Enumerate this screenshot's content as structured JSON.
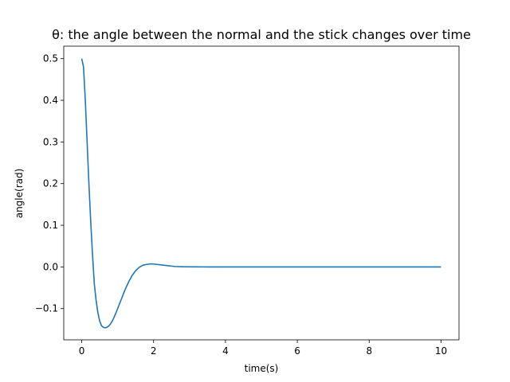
{
  "chart_data": {
    "type": "line",
    "title": "θ: the angle between the normal and the stick changes over time",
    "xlabel": "time(s)",
    "ylabel": "angle(rad)",
    "xlim": [
      -0.5,
      10.5
    ],
    "ylim": [
      -0.175,
      0.53
    ],
    "xticks": [
      0,
      2,
      4,
      6,
      8,
      10
    ],
    "yticks": [
      -0.1,
      0.0,
      0.1,
      0.2,
      0.3,
      0.4,
      0.5
    ],
    "xtick_labels": [
      "0",
      "2",
      "4",
      "6",
      "8",
      "10"
    ],
    "ytick_labels": [
      "−0.1",
      "0.0",
      "0.1",
      "0.2",
      "0.3",
      "0.4",
      "0.5"
    ],
    "grid": false,
    "series": [
      {
        "color": "#1f77b4",
        "x": [
          0,
          0.05,
          0.1,
          0.15,
          0.2,
          0.25,
          0.3,
          0.35,
          0.4,
          0.45,
          0.5,
          0.55,
          0.6,
          0.65,
          0.7,
          0.75,
          0.8,
          0.85,
          0.9,
          0.95,
          1.0,
          1.1,
          1.2,
          1.3,
          1.4,
          1.5,
          1.6,
          1.7,
          1.8,
          1.9,
          2.0,
          2.1,
          2.2,
          2.3,
          2.4,
          2.5,
          2.6,
          2.8,
          3.0,
          3.2,
          3.5,
          4.0,
          5.0,
          6.0,
          7.0,
          8.0,
          9.0,
          10.0
        ],
        "y": [
          0.5,
          0.48,
          0.4,
          0.3,
          0.2,
          0.11,
          0.03,
          -0.04,
          -0.08,
          -0.11,
          -0.13,
          -0.141,
          -0.145,
          -0.146,
          -0.145,
          -0.142,
          -0.137,
          -0.13,
          -0.121,
          -0.111,
          -0.1,
          -0.078,
          -0.056,
          -0.037,
          -0.021,
          -0.009,
          -0.001,
          0.004,
          0.006,
          0.007,
          0.007,
          0.006,
          0.005,
          0.004,
          0.003,
          0.002,
          0.001,
          0.0005,
          0.0002,
          0.0001,
          0.0,
          0.0,
          0.0,
          0.0,
          0.0,
          0.0,
          0.0,
          0.0
        ]
      }
    ]
  }
}
